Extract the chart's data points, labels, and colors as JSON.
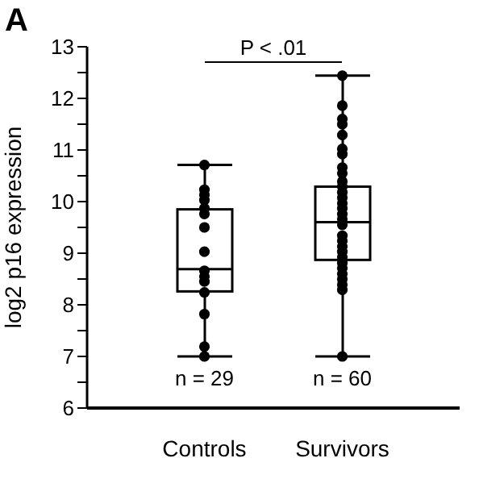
{
  "chart_data": {
    "type": "box",
    "ylabel": "log2 p16 expression",
    "categories": [
      "Controls",
      "Survivors"
    ],
    "boxes": [
      {
        "low": 7.0,
        "q1": 8.26,
        "median": 8.69,
        "q3": 9.85,
        "high": 10.71
      },
      {
        "low": 7.0,
        "q1": 8.87,
        "median": 9.6,
        "q3": 10.29,
        "high": 12.44
      }
    ],
    "series": [
      {
        "type": "scatter",
        "color": "#000000",
        "x": [
          "Controls",
          "Controls",
          "Controls",
          "Controls",
          "Controls",
          "Controls",
          "Controls",
          "Controls",
          "Controls",
          "Controls",
          "Controls",
          "Controls",
          "Controls",
          "Controls",
          "Controls",
          "Survivors",
          "Survivors",
          "Survivors",
          "Survivors",
          "Survivors",
          "Survivors",
          "Survivors",
          "Survivors",
          "Survivors",
          "Survivors",
          "Survivors",
          "Survivors",
          "Survivors",
          "Survivors",
          "Survivors",
          "Survivors",
          "Survivors",
          "Survivors",
          "Survivors",
          "Survivors",
          "Survivors",
          "Survivors",
          "Survivors",
          "Survivors",
          "Survivors",
          "Survivors",
          "Survivors",
          "Survivors",
          "Survivors",
          "Survivors"
        ],
        "values": [
          10.71,
          10.23,
          10.13,
          10.03,
          9.87,
          9.76,
          9.5,
          9.03,
          8.66,
          8.55,
          8.45,
          8.24,
          7.82,
          7.19,
          7.0,
          12.44,
          11.86,
          11.6,
          11.5,
          11.29,
          11.02,
          10.92,
          10.66,
          10.55,
          10.39,
          10.29,
          10.18,
          10.08,
          9.97,
          9.87,
          9.76,
          9.66,
          9.55,
          9.34,
          9.24,
          9.13,
          9.03,
          8.92,
          8.81,
          8.71,
          8.6,
          8.5,
          8.39,
          8.29,
          7.0
        ]
      }
    ],
    "marker": "circle",
    "ylim": [
      6,
      13
    ],
    "yticks": [
      6,
      {
        "value": 6.5,
        "label": null
      },
      7,
      {
        "value": 7.5,
        "label": null
      },
      8,
      {
        "value": 8.5,
        "label": null
      },
      9,
      {
        "value": 9.5,
        "label": null
      },
      10,
      {
        "value": 10.5,
        "label": null
      },
      11,
      {
        "value": 11.5,
        "label": null
      },
      12,
      {
        "value": 12.5,
        "label": null
      },
      13
    ],
    "grid": false,
    "legend": false,
    "annotations": [
      "A",
      "P < .01",
      "n = 29",
      "n = 60"
    ]
  }
}
